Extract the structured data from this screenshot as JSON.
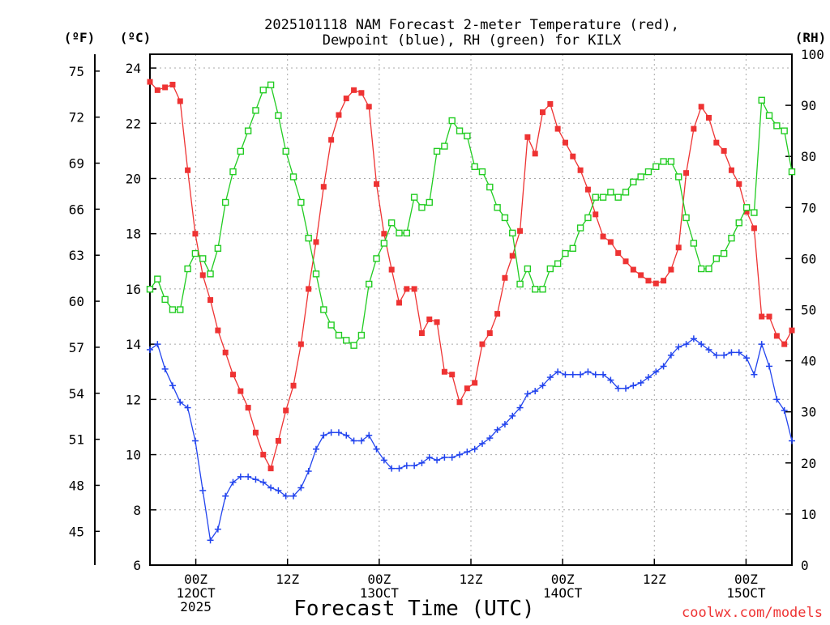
{
  "chart_data": {
    "type": "line",
    "title_line1": "2025101118 NAM Forecast 2-meter Temperature (red),",
    "title_line2": "Dewpoint (blue), RH (green) for KILX",
    "xlabel": "Forecast Time (UTC)",
    "credit": "coolwx.com/models",
    "unit_labels": {
      "fahrenheit": "(ºF)",
      "celsius": "(ºC)",
      "rh": "(RH)"
    },
    "x_hours_range": [
      18,
      102
    ],
    "celsius_range": [
      6,
      24.5
    ],
    "rh_range": [
      0,
      100
    ],
    "celsius_ticks": [
      "6",
      "8",
      "10",
      "12",
      "14",
      "16",
      "18",
      "20",
      "22",
      "24"
    ],
    "fahrenheit_ticks": [
      "45",
      "48",
      "51",
      "54",
      "57",
      "60",
      "63",
      "66",
      "69",
      "72",
      "75"
    ],
    "rh_ticks": [
      "0",
      "10",
      "20",
      "30",
      "40",
      "50",
      "60",
      "70",
      "80",
      "90",
      "100"
    ],
    "x_ticks": [
      {
        "hour": 24,
        "lines": [
          "00Z",
          "12OCT",
          "2025"
        ]
      },
      {
        "hour": 36,
        "lines": [
          "12Z"
        ]
      },
      {
        "hour": 48,
        "lines": [
          "00Z",
          "13OCT"
        ]
      },
      {
        "hour": 60,
        "lines": [
          "12Z"
        ]
      },
      {
        "hour": 72,
        "lines": [
          "00Z",
          "14OCT"
        ]
      },
      {
        "hour": 84,
        "lines": [
          "12Z"
        ]
      },
      {
        "hour": 96,
        "lines": [
          "00Z",
          "15OCT"
        ]
      }
    ],
    "series": [
      {
        "name": "2-meter Temperature",
        "unit": "C",
        "color": "#ee3333",
        "marker": "filled-square",
        "values": [
          23.5,
          23.2,
          23.3,
          23.4,
          22.8,
          20.3,
          18.0,
          16.5,
          15.6,
          14.5,
          13.7,
          12.9,
          12.3,
          11.7,
          10.8,
          10.0,
          9.5,
          10.5,
          11.6,
          12.5,
          14.0,
          16.0,
          17.7,
          19.7,
          21.4,
          22.3,
          22.9,
          23.2,
          23.1,
          22.6,
          19.8,
          18.0,
          16.7,
          15.5,
          16.0,
          16.0,
          14.4,
          14.9,
          14.8,
          13.0,
          12.9,
          11.9,
          12.4,
          12.6,
          14.0,
          14.4,
          15.1,
          16.4,
          17.2,
          18.1,
          21.5,
          20.9,
          22.4,
          22.7,
          21.8,
          21.3,
          20.8,
          20.3,
          19.6,
          18.7,
          17.9,
          17.7,
          17.3,
          17.0,
          16.7,
          16.5,
          16.3,
          16.2,
          16.3,
          16.7,
          17.5,
          20.2,
          21.8,
          22.6,
          22.2,
          21.3,
          21.0,
          20.3,
          19.8,
          18.8,
          18.2,
          15.0,
          15.0,
          14.3,
          14.0,
          14.5
        ]
      },
      {
        "name": "Dewpoint",
        "unit": "C",
        "color": "#2244ee",
        "marker": "plus",
        "values": [
          13.8,
          14.0,
          13.1,
          12.5,
          11.9,
          11.7,
          10.5,
          8.7,
          6.9,
          7.3,
          8.5,
          9.0,
          9.2,
          9.2,
          9.1,
          9.0,
          8.8,
          8.7,
          8.5,
          8.5,
          8.8,
          9.4,
          10.2,
          10.7,
          10.8,
          10.8,
          10.7,
          10.5,
          10.5,
          10.7,
          10.2,
          9.8,
          9.5,
          9.5,
          9.6,
          9.6,
          9.7,
          9.9,
          9.8,
          9.9,
          9.9,
          10.0,
          10.1,
          10.2,
          10.4,
          10.6,
          10.9,
          11.1,
          11.4,
          11.7,
          12.2,
          12.3,
          12.5,
          12.8,
          13.0,
          12.9,
          12.9,
          12.9,
          13.0,
          12.9,
          12.9,
          12.7,
          12.4,
          12.4,
          12.5,
          12.6,
          12.8,
          13.0,
          13.2,
          13.6,
          13.9,
          14.0,
          14.2,
          14.0,
          13.8,
          13.6,
          13.6,
          13.7,
          13.7,
          13.5,
          12.9,
          14.0,
          13.2,
          12.0,
          11.6,
          10.5
        ]
      },
      {
        "name": "RH",
        "unit": "%",
        "color": "#22cc22",
        "marker": "open-square",
        "values": [
          54,
          56,
          52,
          50,
          50,
          58,
          61,
          60,
          57,
          62,
          71,
          77,
          81,
          85,
          89,
          93,
          94,
          88,
          81,
          76,
          71,
          64,
          57,
          50,
          47,
          45,
          44,
          43,
          45,
          55,
          60,
          63,
          67,
          65,
          65,
          72,
          70,
          71,
          81,
          82,
          87,
          85,
          84,
          78,
          77,
          74,
          70,
          68,
          65,
          55,
          58,
          54,
          54,
          58,
          59,
          61,
          62,
          66,
          68,
          72,
          72,
          73,
          72,
          73,
          75,
          76,
          77,
          78,
          79,
          79,
          76,
          68,
          63,
          58,
          58,
          60,
          61,
          64,
          67,
          70,
          69,
          91,
          88,
          86,
          85,
          77
        ]
      }
    ]
  }
}
